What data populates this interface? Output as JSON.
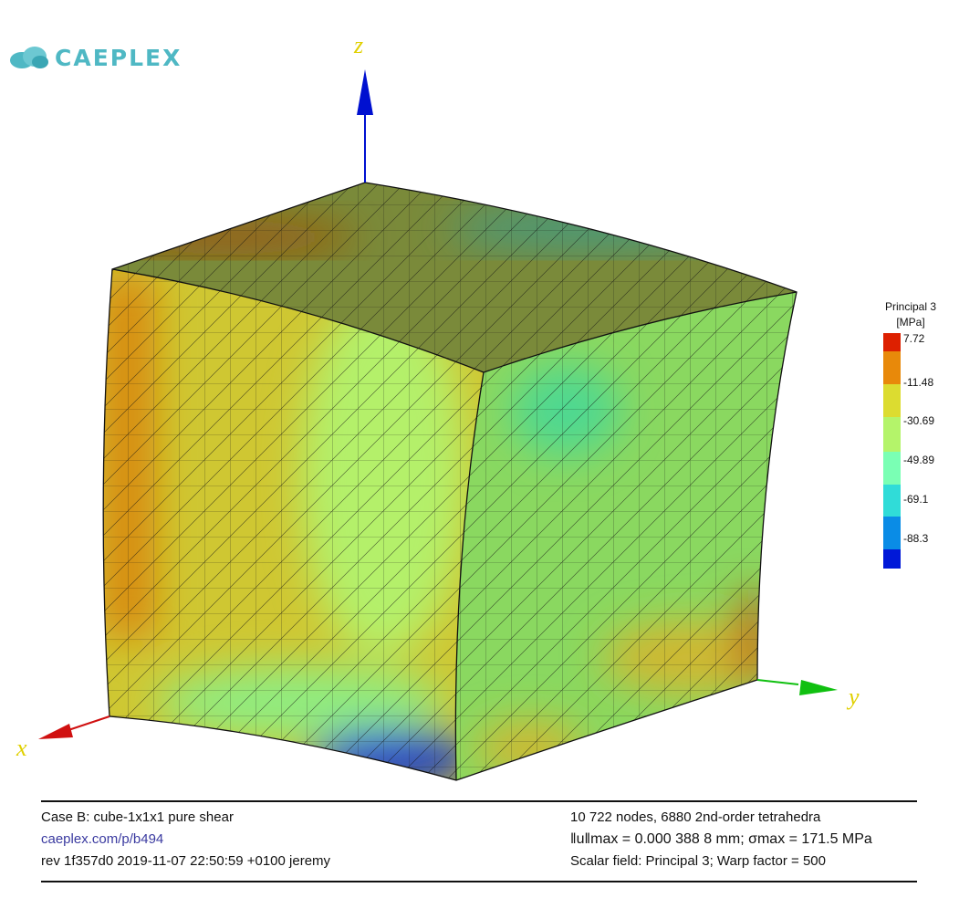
{
  "logo": {
    "text": "CAEPLEX"
  },
  "axes": {
    "x": "x",
    "y": "y",
    "z": "z",
    "x_color": "#d01010",
    "y_color": "#10c010",
    "z_color": "#0010d0",
    "label_color": "#e0d000"
  },
  "legend": {
    "title": "Principal 3",
    "unit": "[MPa]",
    "labels": [
      "7.72",
      "-11.48",
      "-30.69",
      "-49.89",
      "-69.1",
      "-88.3"
    ],
    "colors": [
      "#dd2000",
      "#e8890a",
      "#dcdc30",
      "#b4f46a",
      "#7affb4",
      "#30dcd8",
      "#0a8ce6",
      "#0018d8"
    ]
  },
  "footer": {
    "case": "Case B: cube-1x1x1 pure shear",
    "link": "caeplex.com/p/b494",
    "rev": "rev 1f357d0 2019-11-07 22:50:59 +0100 jeremy",
    "mesh": "10 722 nodes, 6880 2nd-order tetrahedra",
    "max": "‖u‖max = 0.000 388 8 mm; σmax = 171.5 MPa",
    "field": "Scalar field:  Principal 3; Warp factor = 500"
  }
}
